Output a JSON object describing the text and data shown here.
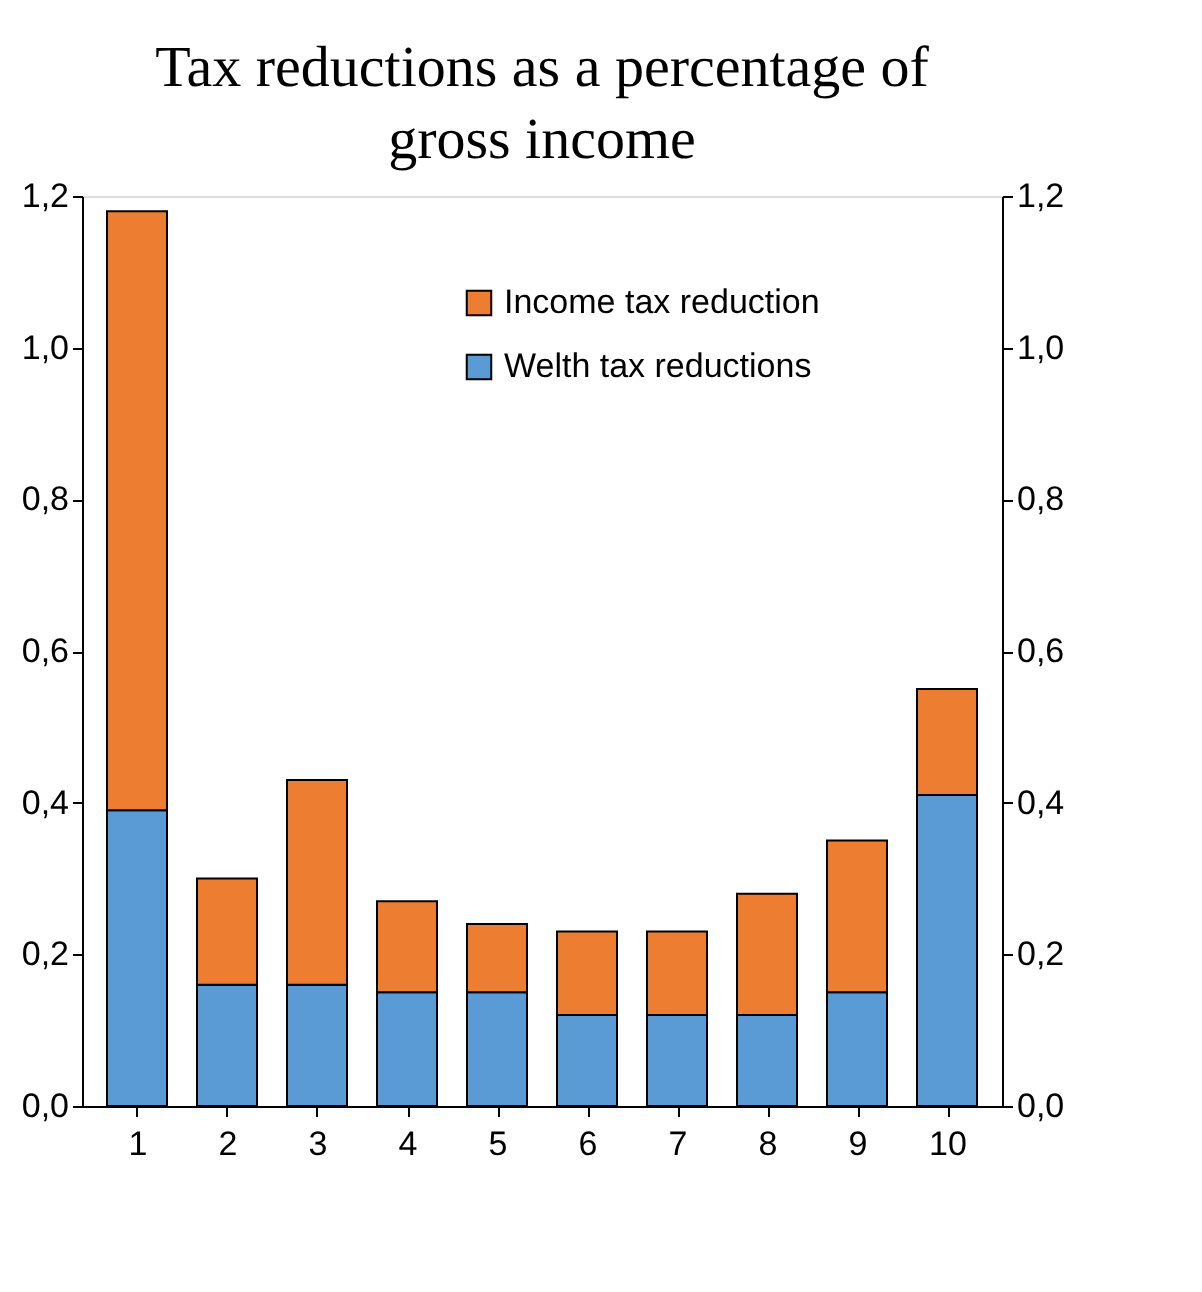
{
  "chart_data": {
    "type": "bar",
    "title": "Tax reductions as a percentage of gross income",
    "categories": [
      "1",
      "2",
      "3",
      "4",
      "5",
      "6",
      "7",
      "8",
      "9",
      "10"
    ],
    "stacked": true,
    "series": [
      {
        "name": "Welth tax reductions",
        "color": "#5b9bd5",
        "values": [
          0.39,
          0.16,
          0.16,
          0.15,
          0.15,
          0.12,
          0.12,
          0.12,
          0.15,
          0.41
        ]
      },
      {
        "name": "Income tax reduction",
        "color": "#ed7d31",
        "values": [
          0.79,
          0.14,
          0.27,
          0.12,
          0.09,
          0.11,
          0.11,
          0.16,
          0.2,
          0.14
        ]
      }
    ],
    "ylim": [
      0,
      1.2
    ],
    "yticks": [
      {
        "value": 0,
        "label": "0,0"
      },
      {
        "value": 0.2,
        "label": "0,2"
      },
      {
        "value": 0.4,
        "label": "0,4"
      },
      {
        "value": 0.6,
        "label": "0,6"
      },
      {
        "value": 0.8,
        "label": "0,8"
      },
      {
        "value": 1.0,
        "label": "1,0"
      },
      {
        "value": 1.2,
        "label": "1,2"
      }
    ],
    "y2lim": [
      0,
      1.2
    ],
    "y2ticks": [
      {
        "value": 0,
        "label": "0,0"
      },
      {
        "value": 0.2,
        "label": "0,2"
      },
      {
        "value": 0.4,
        "label": "0,4"
      },
      {
        "value": 0.6,
        "label": "0,6"
      },
      {
        "value": 0.8,
        "label": "0,8"
      },
      {
        "value": 1.0,
        "label": "1,0"
      },
      {
        "value": 1.2,
        "label": "1,2"
      }
    ],
    "grid": false,
    "legend": "top"
  }
}
